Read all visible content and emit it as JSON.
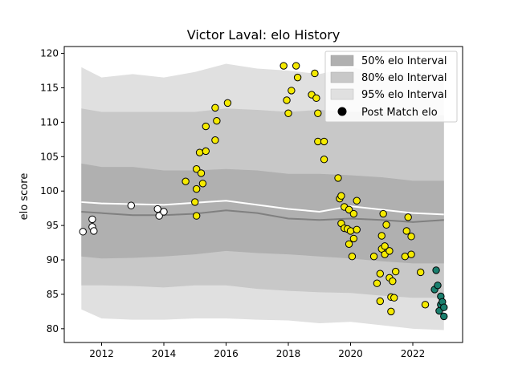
{
  "chart_data": {
    "type": "scatter",
    "title": "Victor Laval: elo History",
    "xlabel": "",
    "ylabel": "elo score",
    "xlim": [
      2010.8,
      2023.6
    ],
    "ylim": [
      78,
      121
    ],
    "x_ticks": [
      2012,
      2014,
      2016,
      2018,
      2020,
      2022
    ],
    "y_ticks": [
      80,
      85,
      90,
      95,
      100,
      105,
      110,
      115,
      120
    ],
    "grid": false,
    "legend": {
      "position": "top-right",
      "entries": [
        {
          "label": "50% elo Interval",
          "color": "#b0b0b0"
        },
        {
          "label": "80% elo Interval",
          "color": "#c8c8c8"
        },
        {
          "label": "95% elo Interval",
          "color": "#e0e0e0"
        },
        {
          "label": "Post Match elo",
          "color": "#000000"
        }
      ]
    },
    "bands": {
      "x": [
        2011.35,
        2012.0,
        2013.0,
        2014.0,
        2015.0,
        2016.0,
        2017.0,
        2018.0,
        2019.0,
        2020.0,
        2021.0,
        2022.0,
        2023.0
      ],
      "p95": [
        [
          82.8,
          118.0
        ],
        [
          81.5,
          116.5
        ],
        [
          81.3,
          117.0
        ],
        [
          81.3,
          116.5
        ],
        [
          81.5,
          117.3
        ],
        [
          81.5,
          118.5
        ],
        [
          81.3,
          117.8
        ],
        [
          81.2,
          117.5
        ],
        [
          80.8,
          117.0
        ],
        [
          81.0,
          118.0
        ],
        [
          80.5,
          117.0
        ],
        [
          80.0,
          117.2
        ],
        [
          79.8,
          117.0
        ]
      ],
      "p80": [
        [
          86.3,
          112.0
        ],
        [
          86.3,
          111.5
        ],
        [
          86.2,
          111.5
        ],
        [
          86.0,
          111.5
        ],
        [
          86.3,
          111.5
        ],
        [
          86.3,
          112.0
        ],
        [
          85.8,
          111.8
        ],
        [
          85.5,
          111.5
        ],
        [
          85.3,
          111.8
        ],
        [
          85.2,
          111.5
        ],
        [
          84.8,
          111.5
        ],
        [
          84.5,
          111.0
        ],
        [
          84.5,
          111.0
        ]
      ],
      "p50": [
        [
          90.5,
          104.0
        ],
        [
          90.2,
          103.5
        ],
        [
          90.3,
          103.5
        ],
        [
          90.5,
          103.0
        ],
        [
          90.8,
          103.0
        ],
        [
          91.3,
          103.2
        ],
        [
          91.0,
          103.0
        ],
        [
          90.8,
          102.5
        ],
        [
          90.5,
          102.5
        ],
        [
          90.2,
          102.3
        ],
        [
          89.8,
          102.0
        ],
        [
          89.5,
          101.5
        ],
        [
          89.5,
          101.5
        ]
      ],
      "median": [
        97.0,
        96.8,
        96.5,
        96.5,
        96.7,
        97.2,
        96.8,
        96.0,
        95.8,
        96.0,
        95.8,
        95.5,
        95.8
      ],
      "mean": [
        98.4,
        98.2,
        98.1,
        98.0,
        98.3,
        98.6,
        98.0,
        97.4,
        97.0,
        97.8,
        97.3,
        96.8,
        96.6
      ]
    },
    "series": [
      {
        "color": "#ffffff",
        "points": [
          [
            2011.4,
            94.1
          ],
          [
            2011.7,
            95.9
          ],
          [
            2011.7,
            94.8
          ],
          [
            2011.75,
            94.2
          ],
          [
            2012.95,
            97.9
          ],
          [
            2013.8,
            97.4
          ],
          [
            2013.85,
            96.4
          ],
          [
            2014.0,
            97.0
          ]
        ]
      },
      {
        "color": "#f5ea00",
        "points": [
          [
            2014.7,
            101.4
          ],
          [
            2015.0,
            98.4
          ],
          [
            2015.05,
            103.2
          ],
          [
            2015.05,
            100.3
          ],
          [
            2015.05,
            96.4
          ],
          [
            2015.15,
            105.6
          ],
          [
            2015.2,
            102.6
          ],
          [
            2015.25,
            101.1
          ],
          [
            2015.35,
            105.8
          ],
          [
            2015.35,
            109.4
          ],
          [
            2015.65,
            107.4
          ],
          [
            2015.65,
            112.1
          ],
          [
            2015.7,
            110.2
          ],
          [
            2016.05,
            112.8
          ],
          [
            2017.85,
            118.2
          ],
          [
            2017.95,
            113.2
          ],
          [
            2018.0,
            111.3
          ],
          [
            2018.1,
            114.6
          ],
          [
            2018.25,
            118.2
          ],
          [
            2018.3,
            116.5
          ],
          [
            2018.75,
            114.0
          ],
          [
            2018.85,
            117.1
          ],
          [
            2018.9,
            113.5
          ],
          [
            2018.95,
            111.3
          ],
          [
            2018.95,
            107.2
          ],
          [
            2019.15,
            107.2
          ],
          [
            2019.15,
            104.6
          ],
          [
            2019.6,
            101.9
          ],
          [
            2019.65,
            98.9
          ],
          [
            2019.7,
            99.3
          ],
          [
            2019.7,
            95.3
          ],
          [
            2019.8,
            94.6
          ],
          [
            2019.8,
            97.7
          ],
          [
            2019.9,
            94.5
          ],
          [
            2019.95,
            92.3
          ],
          [
            2019.95,
            97.3
          ],
          [
            2020.0,
            94.2
          ],
          [
            2020.05,
            90.5
          ],
          [
            2020.1,
            93.1
          ],
          [
            2020.1,
            96.7
          ],
          [
            2020.2,
            94.4
          ],
          [
            2020.2,
            98.6
          ],
          [
            2020.75,
            90.5
          ],
          [
            2020.85,
            86.6
          ],
          [
            2020.95,
            84.0
          ],
          [
            2020.95,
            88.0
          ],
          [
            2021.0,
            91.6
          ],
          [
            2021.0,
            93.5
          ],
          [
            2021.05,
            96.7
          ],
          [
            2021.1,
            92.0
          ],
          [
            2021.1,
            90.8
          ],
          [
            2021.15,
            95.1
          ],
          [
            2021.25,
            87.4
          ],
          [
            2021.25,
            91.3
          ],
          [
            2021.3,
            84.6
          ],
          [
            2021.3,
            82.5
          ],
          [
            2021.35,
            86.9
          ],
          [
            2021.4,
            84.5
          ],
          [
            2021.45,
            88.3
          ],
          [
            2021.75,
            90.5
          ],
          [
            2021.8,
            94.2
          ],
          [
            2021.85,
            96.2
          ],
          [
            2021.95,
            93.4
          ],
          [
            2021.95,
            90.8
          ],
          [
            2022.25,
            88.2
          ],
          [
            2022.4,
            83.5
          ]
        ]
      },
      {
        "color": "#1a7f6e",
        "points": [
          [
            2022.7,
            85.7
          ],
          [
            2022.75,
            88.5
          ],
          [
            2022.8,
            86.3
          ],
          [
            2022.85,
            82.6
          ],
          [
            2022.9,
            84.7
          ],
          [
            2022.9,
            83.5
          ],
          [
            2022.95,
            83.9
          ],
          [
            2023.0,
            83.1
          ],
          [
            2023.0,
            81.8
          ]
        ]
      }
    ]
  }
}
